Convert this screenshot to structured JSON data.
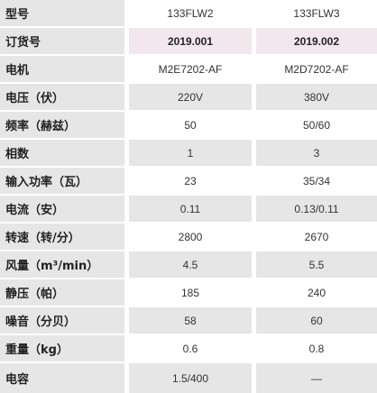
{
  "colors": {
    "gray": "#e6e6e6",
    "white": "#ffffff",
    "pink": "#f3e7ee"
  },
  "rows": [
    {
      "label": "型号",
      "v1": "133FLW2",
      "v2": "133FLW3"
    },
    {
      "label": "订货号",
      "v1": "2019.001",
      "v2": "2019.002"
    },
    {
      "label": "电机",
      "v1": "M2E7202-AF",
      "v2": "M2D7202-AF"
    },
    {
      "label": "电压（伏）",
      "v1": "220V",
      "v2": "380V"
    },
    {
      "label": "频率（赫兹）",
      "v1": "50",
      "v2": "50/60"
    },
    {
      "label": "相数",
      "v1": "1",
      "v2": "3"
    },
    {
      "label": "输入功率（瓦）",
      "v1": "23",
      "v2": "35/34"
    },
    {
      "label": "电流（安）",
      "v1": "0.11",
      "v2": "0.13/0.11"
    },
    {
      "label": "转速（转/分）",
      "v1": "2800",
      "v2": "2670"
    },
    {
      "label": "风量（m³/min）",
      "v1": "4.5",
      "v2": "5.5"
    },
    {
      "label": "静压（帕）",
      "v1": "185",
      "v2": "240"
    },
    {
      "label": "噪音（分贝）",
      "v1": "58",
      "v2": "60"
    },
    {
      "label": "重量（kg）",
      "v1": "0.6",
      "v2": "0.8"
    },
    {
      "label": "电容",
      "v1": "1.5/400",
      "v2": "—"
    }
  ]
}
